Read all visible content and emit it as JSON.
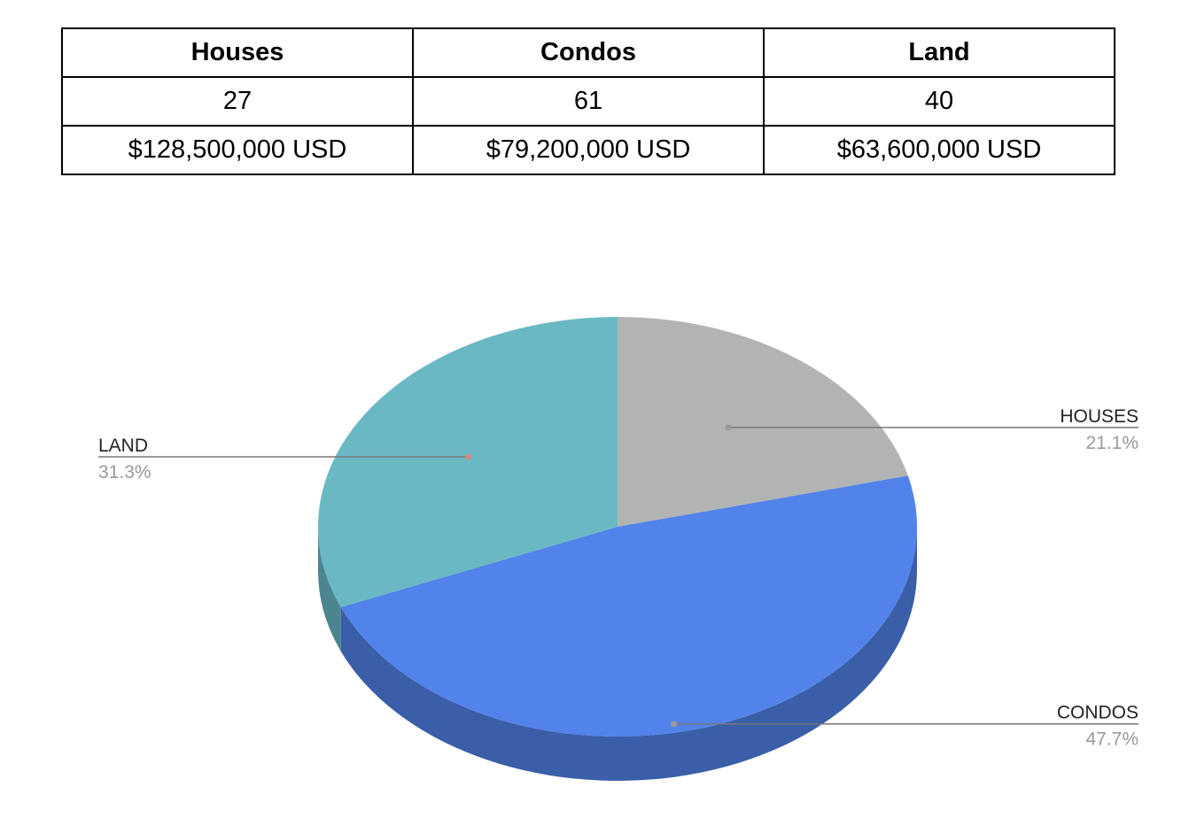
{
  "table": {
    "headers": [
      "Houses",
      "Condos",
      "Land"
    ],
    "rows": [
      [
        "27",
        "61",
        "40"
      ],
      [
        "$128,500,000 USD",
        "$79,200,000 USD",
        "$63,600,000 USD"
      ]
    ]
  },
  "chart_data": {
    "type": "pie",
    "style": "3d",
    "slices": [
      {
        "label": "HOUSES",
        "value": 27,
        "percent_label": "21.1%",
        "color": "#b2b4b3",
        "side_color": "#8a8c8b"
      },
      {
        "label": "CONDOS",
        "value": 61,
        "percent_label": "47.7%",
        "color": "#5283ea",
        "side_color": "#3a5ea8"
      },
      {
        "label": "LAND",
        "value": 40,
        "percent_label": "31.3%",
        "color": "#6bb8c5",
        "side_color": "#4b8590"
      }
    ]
  }
}
